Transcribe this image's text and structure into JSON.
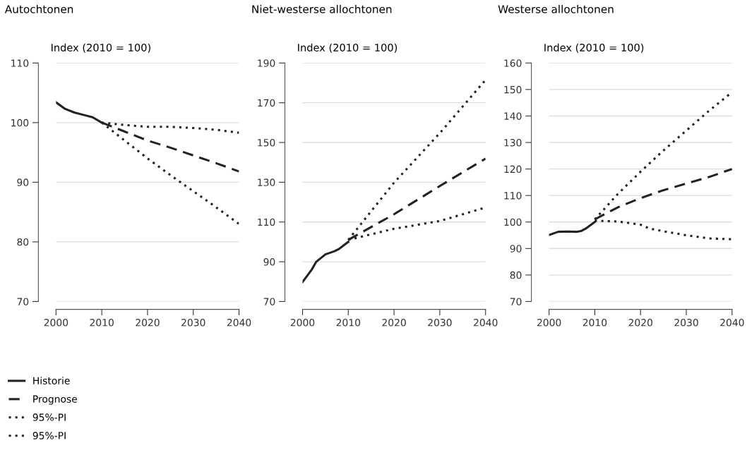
{
  "chart_data": [
    {
      "type": "line",
      "title": "Autochtonen",
      "ylabel": "Index (2010 = 100)",
      "xlim": [
        2000,
        2040
      ],
      "xticks": [
        2000,
        2010,
        2020,
        2030,
        2040
      ],
      "ylim": [
        70,
        110
      ],
      "yticks": [
        70,
        80,
        90,
        100,
        110
      ],
      "grid": "y",
      "legend": "bottom left",
      "series": [
        {
          "name": "Historie",
          "color": "#222222",
          "line_style": "solid",
          "x": [
            2000,
            2002,
            2004,
            2006,
            2008,
            2010
          ],
          "values": [
            103.4,
            102.3,
            101.7,
            101.3,
            100.9,
            100
          ]
        },
        {
          "name": "Prognose",
          "color": "#222222",
          "line_style": "dashed",
          "x": [
            2010,
            2015,
            2020,
            2025,
            2030,
            2035,
            2040
          ],
          "values": [
            100,
            98.5,
            97,
            95.8,
            94.5,
            93.2,
            91.8
          ]
        },
        {
          "name": "95%-PI",
          "color": "#222222",
          "line_style": "dotted",
          "x": [
            2010,
            2015,
            2020,
            2025,
            2030,
            2035,
            2040
          ],
          "values": [
            100,
            99.6,
            99.3,
            99.3,
            99.1,
            98.8,
            98.3
          ]
        },
        {
          "name": "95%-PI",
          "color": "#222222",
          "line_style": "dotted",
          "x": [
            2010,
            2015,
            2020,
            2025,
            2030,
            2035,
            2040
          ],
          "values": [
            100,
            97,
            94,
            91.2,
            88.5,
            85.8,
            83
          ]
        }
      ]
    },
    {
      "type": "line",
      "title": "Niet-westerse allochtonen",
      "ylabel": "Index (2010 = 100)",
      "xlim": [
        2000,
        2040
      ],
      "xticks": [
        2000,
        2010,
        2020,
        2030,
        2040
      ],
      "ylim": [
        70,
        190
      ],
      "yticks": [
        70,
        90,
        110,
        130,
        150,
        170,
        190
      ],
      "grid": "y",
      "series": [
        {
          "color": "#222222",
          "line_style": "solid",
          "x": [
            2000,
            2002,
            2003,
            2005,
            2007,
            2008,
            2010
          ],
          "values": [
            79.8,
            86,
            90,
            93.7,
            95.3,
            96.5,
            100
          ]
        },
        {
          "color": "#222222",
          "line_style": "dashed",
          "x": [
            2010,
            2020,
            2030,
            2040
          ],
          "values": [
            101,
            113.9,
            128.1,
            141.9
          ]
        },
        {
          "color": "#222222",
          "line_style": "dotted",
          "x": [
            2010,
            2020,
            2030,
            2040
          ],
          "values": [
            101,
            129.8,
            154.7,
            181.5
          ]
        },
        {
          "color": "#222222",
          "line_style": "dotted",
          "x": [
            2010,
            2020,
            2030,
            2040
          ],
          "values": [
            101,
            106.6,
            110.5,
            117.3
          ]
        }
      ]
    },
    {
      "type": "line",
      "title": "Westerse allochtonen",
      "ylabel": "Index (2010 = 100)",
      "xlim": [
        2000,
        2040
      ],
      "xticks": [
        2000,
        2010,
        2020,
        2030,
        2040
      ],
      "ylim": [
        70,
        160
      ],
      "yticks": [
        70,
        80,
        90,
        100,
        110,
        120,
        130,
        140,
        150,
        160
      ],
      "grid": "y",
      "series": [
        {
          "color": "#222222",
          "line_style": "solid",
          "x": [
            2000,
            2002,
            2004,
            2006,
            2007,
            2008,
            2010
          ],
          "values": [
            95.1,
            96.3,
            96.4,
            96.3,
            96.6,
            97.5,
            100
          ]
        },
        {
          "color": "#222222",
          "line_style": "dashed",
          "x": [
            2010,
            2015,
            2020,
            2025,
            2030,
            2035,
            2040
          ],
          "values": [
            101,
            105.5,
            109,
            112,
            114.5,
            117,
            120
          ]
        },
        {
          "color": "#222222",
          "line_style": "dotted",
          "x": [
            2010,
            2015,
            2020,
            2025,
            2030,
            2035,
            2040
          ],
          "values": [
            101,
            110.5,
            119,
            127,
            134.5,
            142,
            149
          ]
        },
        {
          "color": "#222222",
          "line_style": "dotted",
          "x": [
            2010,
            2015,
            2020,
            2022,
            2025,
            2030,
            2035,
            2040
          ],
          "values": [
            100.5,
            100.2,
            99,
            97.5,
            96.5,
            95,
            93.8,
            93.5
          ]
        }
      ]
    }
  ]
}
